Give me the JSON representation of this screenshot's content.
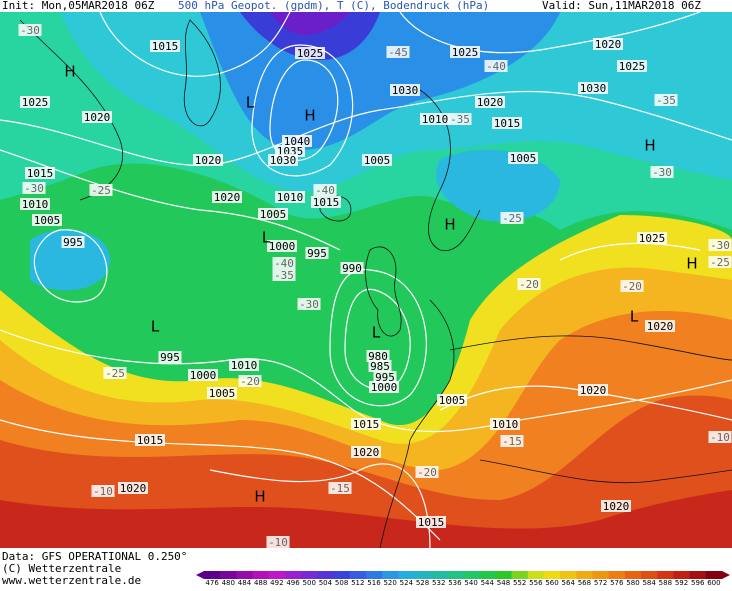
{
  "header": {
    "init": "Init: Mon,05MAR2018 06Z",
    "field": "500 hPa Geopot. (gpdm), T (C), Bodendruck (hPa)",
    "valid": "Valid: Sun,11MAR2018 06Z"
  },
  "footer": {
    "data": "Data: GFS OPERATIONAL 0.250°",
    "copyright": "(C) Wetterzentrale",
    "url": "www.wetterzentrale.de"
  },
  "colorbar": {
    "labels": [
      476,
      480,
      484,
      488,
      492,
      496,
      500,
      504,
      508,
      512,
      516,
      520,
      524,
      528,
      532,
      536,
      540,
      544,
      548,
      552,
      556,
      560,
      564,
      568,
      572,
      576,
      580,
      584,
      588,
      592,
      596,
      600
    ]
  },
  "pressure_labels": [
    "1015",
    "1025",
    "1025",
    "1020",
    "1025",
    "1030",
    "1030",
    "1025",
    "1020",
    "1020",
    "1015",
    "1010",
    "1040",
    "1035",
    "1030",
    "1020",
    "1005",
    "1005",
    "1015",
    "1020",
    "1010",
    "1015",
    "1010",
    "1005",
    "1005",
    "995",
    "1000",
    "995",
    "990",
    "1025",
    "1020",
    "995",
    "1010",
    "1000",
    "1005",
    "980",
    "985",
    "995",
    "1000",
    "1005",
    "1020",
    "1015",
    "1015",
    "1010",
    "1020",
    "1020",
    "1020",
    "1015"
  ],
  "temperature_labels": [
    "-45",
    "-40",
    "-35",
    "-35",
    "-40",
    "-30",
    "-25",
    "-30",
    "-25",
    "-40",
    "-35",
    "-30",
    "-25",
    "-20",
    "-20",
    "-20",
    "-15",
    "-20",
    "-15",
    "-10",
    "-10",
    "-10",
    "-25",
    "-30",
    "-30"
  ],
  "centers": [
    "H",
    "L",
    "H",
    "H",
    "H",
    "L",
    "L",
    "L",
    "L",
    "H",
    "H"
  ]
}
